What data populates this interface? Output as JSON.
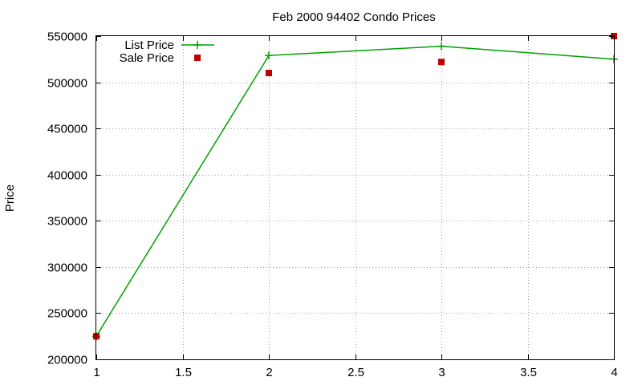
{
  "chart_data": {
    "type": "line",
    "title": "Feb 2000 94402 Condo Prices",
    "xlabel": "",
    "ylabel": "Price",
    "xlim": [
      1,
      4
    ],
    "ylim": [
      200000,
      550000
    ],
    "xticks": [
      1,
      1.5,
      2,
      2.5,
      3,
      3.5,
      4
    ],
    "yticks": [
      200000,
      250000,
      300000,
      350000,
      400000,
      450000,
      500000,
      550000
    ],
    "grid": true,
    "legend_position": "top-left",
    "series": [
      {
        "name": "List Price",
        "style": "linespoints",
        "marker": "plus",
        "color": "#00a000",
        "x": [
          1,
          2,
          3,
          4
        ],
        "y": [
          225000,
          529000,
          539000,
          525000
        ]
      },
      {
        "name": "Sale Price",
        "style": "points",
        "marker": "square",
        "color": "#c00000",
        "x": [
          1,
          2,
          3,
          4
        ],
        "y": [
          225000,
          510000,
          522000,
          550000
        ]
      }
    ]
  }
}
